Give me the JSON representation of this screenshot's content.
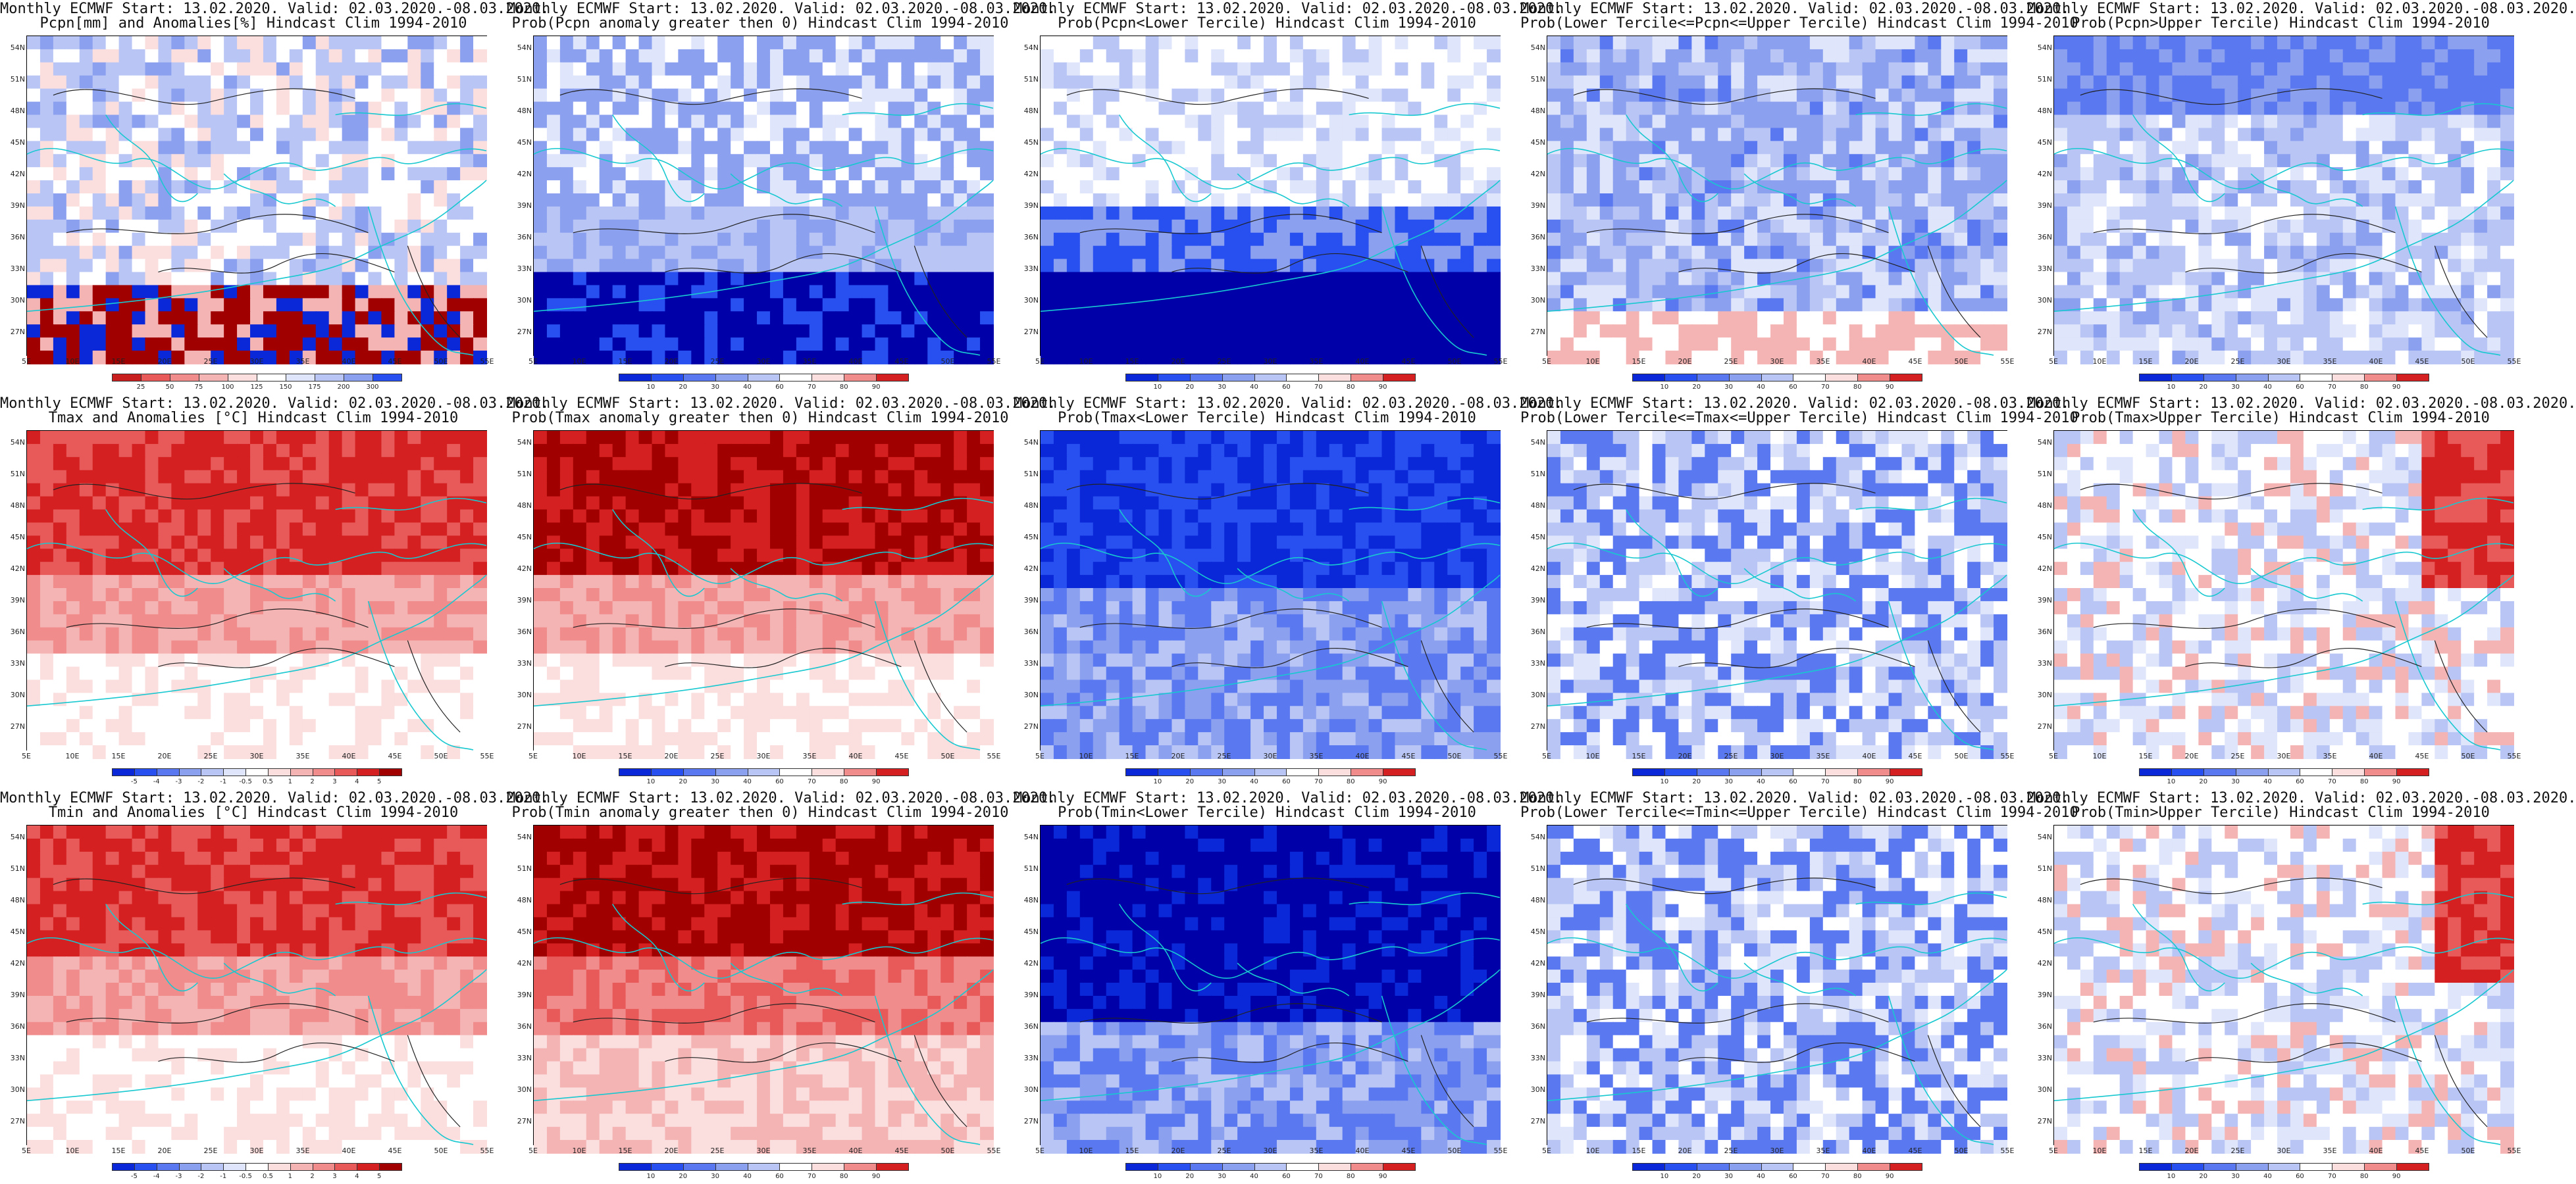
{
  "panels": [
    {
      "id": "pcpn-anom",
      "title1": "Monthly ECMWF Start: 13.02.2020. Valid: 02.03.2020.-08.03.2020.",
      "title2": "Pcpn[mm] and Anomalies[%] Hindcast Clim 1994-2010",
      "scale": "anom-pcpn",
      "colorbar_ticks": [
        "25",
        "50",
        "75",
        "100",
        "125",
        "150",
        "175",
        "200",
        "300"
      ]
    },
    {
      "id": "pcpn-gt0",
      "title1": "Monthly ECMWF Start: 13.02.2020. Valid: 02.03.2020.-08.03.2020.",
      "title2": "Prob(Pcpn anomaly greater then 0) Hindcast Clim 1994-2010",
      "scale": "prob",
      "colorbar_ticks": [
        "10",
        "20",
        "30",
        "40",
        "60",
        "70",
        "80",
        "90"
      ]
    },
    {
      "id": "pcpn-lower",
      "title1": "Monthly ECMWF Start: 13.02.2020. Valid: 02.03.2020.-08.03.2020.",
      "title2": "Prob(Pcpn<Lower Tercile) Hindcast Clim 1994-2010",
      "scale": "prob",
      "colorbar_ticks": [
        "10",
        "20",
        "30",
        "40",
        "60",
        "70",
        "80",
        "90"
      ]
    },
    {
      "id": "pcpn-middle",
      "title1": "Monthly ECMWF Start: 13.02.2020. Valid: 02.03.2020.-08.03.2020.",
      "title2": "Prob(Lower Tercile<=Pcpn<=Upper Tercile) Hindcast Clim 1994-2010",
      "scale": "prob",
      "colorbar_ticks": [
        "10",
        "20",
        "30",
        "40",
        "60",
        "70",
        "80",
        "90"
      ]
    },
    {
      "id": "pcpn-upper",
      "title1": "Monthly ECMWF Start: 13.02.2020. Valid: 02.03.2020.-08.03.2020.",
      "title2": "Prob(Pcpn>Upper Tercile) Hindcast Clim 1994-2010",
      "scale": "prob",
      "colorbar_ticks": [
        "10",
        "20",
        "30",
        "40",
        "60",
        "70",
        "80",
        "90"
      ]
    },
    {
      "id": "tmax-anom",
      "title1": "Monthly ECMWF Start: 13.02.2020. Valid: 02.03.2020.-08.03.2020.",
      "title2": "Tmax and Anomalies [°C] Hindcast Clim 1994-2010",
      "scale": "anom-temp",
      "colorbar_ticks": [
        "-5",
        "-4",
        "-3",
        "-2",
        "-1",
        "-0.5",
        "0.5",
        "1",
        "2",
        "3",
        "4",
        "5"
      ]
    },
    {
      "id": "tmax-gt0",
      "title1": "Monthly ECMWF Start: 13.02.2020. Valid: 02.03.2020.-08.03.2020.",
      "title2": "Prob(Tmax anomaly greater then 0) Hindcast Clim 1994-2010",
      "scale": "prob",
      "colorbar_ticks": [
        "10",
        "20",
        "30",
        "40",
        "60",
        "70",
        "80",
        "90"
      ]
    },
    {
      "id": "tmax-lower",
      "title1": "Monthly ECMWF Start: 13.02.2020. Valid: 02.03.2020.-08.03.2020.",
      "title2": "Prob(Tmax<Lower Tercile) Hindcast Clim 1994-2010",
      "scale": "prob",
      "colorbar_ticks": [
        "10",
        "20",
        "30",
        "40",
        "60",
        "70",
        "80",
        "90"
      ]
    },
    {
      "id": "tmax-middle",
      "title1": "Monthly ECMWF Start: 13.02.2020. Valid: 02.03.2020.-08.03.2020.",
      "title2": "Prob(Lower Tercile<=Tmax<=Upper Tercile) Hindcast Clim 1994-2010",
      "scale": "prob",
      "colorbar_ticks": [
        "10",
        "20",
        "30",
        "40",
        "60",
        "70",
        "80",
        "90"
      ]
    },
    {
      "id": "tmax-upper",
      "title1": "Monthly ECMWF Start: 13.02.2020. Valid: 02.03.2020.-08.03.2020.",
      "title2": "Prob(Tmax>Upper Tercile) Hindcast Clim 1994-2010",
      "scale": "prob",
      "colorbar_ticks": [
        "10",
        "20",
        "30",
        "40",
        "60",
        "70",
        "80",
        "90"
      ]
    },
    {
      "id": "tmin-anom",
      "title1": "Monthly ECMWF Start: 13.02.2020. Valid: 02.03.2020.-08.03.2020.",
      "title2": "Tmin and Anomalies [°C] Hindcast Clim 1994-2010",
      "scale": "anom-temp",
      "colorbar_ticks": [
        "-5",
        "-4",
        "-3",
        "-2",
        "-1",
        "-0.5",
        "0.5",
        "1",
        "2",
        "3",
        "4",
        "5"
      ]
    },
    {
      "id": "tmin-gt0",
      "title1": "Monthly ECMWF Start: 13.02.2020. Valid: 02.03.2020.-08.03.2020.",
      "title2": "Prob(Tmin anomaly greater then 0) Hindcast Clim 1994-2010",
      "scale": "prob",
      "colorbar_ticks": [
        "10",
        "20",
        "30",
        "40",
        "60",
        "70",
        "80",
        "90"
      ]
    },
    {
      "id": "tmin-lower",
      "title1": "Monthly ECMWF Start: 13.02.2020. Valid: 02.03.2020.-08.03.2020.",
      "title2": "Prob(Tmin<Lower Tercile) Hindcast Clim 1994-2010",
      "scale": "prob",
      "colorbar_ticks": [
        "10",
        "20",
        "30",
        "40",
        "60",
        "70",
        "80",
        "90"
      ]
    },
    {
      "id": "tmin-middle",
      "title1": "Monthly ECMWF Start: 13.02.2020. Valid: 02.03.2020.-08.03.2020.",
      "title2": "Prob(Lower Tercile<=Tmin<=Upper Tercile) Hindcast Clim 1994-2010",
      "scale": "prob",
      "colorbar_ticks": [
        "10",
        "20",
        "30",
        "40",
        "60",
        "70",
        "80",
        "90"
      ]
    },
    {
      "id": "tmin-upper",
      "title1": "Monthly ECMWF Start: 13.02.2020. Valid: 02.03.2020.-08.03.2020.",
      "title2": "Prob(Tmin>Upper Tercile) Hindcast Clim 1994-2010",
      "scale": "prob",
      "colorbar_ticks": [
        "10",
        "20",
        "30",
        "40",
        "60",
        "70",
        "80",
        "90"
      ]
    }
  ],
  "axes": {
    "lat_labels": [
      "54N",
      "51N",
      "48N",
      "45N",
      "42N",
      "39N",
      "36N",
      "33N",
      "30N",
      "27N"
    ],
    "lon_labels": [
      "5E",
      "10E",
      "15E",
      "20E",
      "25E",
      "30E",
      "35E",
      "40E",
      "45E",
      "50E",
      "55E"
    ]
  },
  "colors": {
    "diverging": [
      "#0000a8",
      "#0a28d8",
      "#2850f0",
      "#5a78f0",
      "#8ca0f0",
      "#b9c6f5",
      "#dfe5fb",
      "#ffffff",
      "#fbdede",
      "#f5b4b4",
      "#f08c8c",
      "#e85a5a",
      "#d42020",
      "#a00000"
    ],
    "coast": "#18c8d0",
    "contour": "#222222",
    "frame": "#000000"
  }
}
